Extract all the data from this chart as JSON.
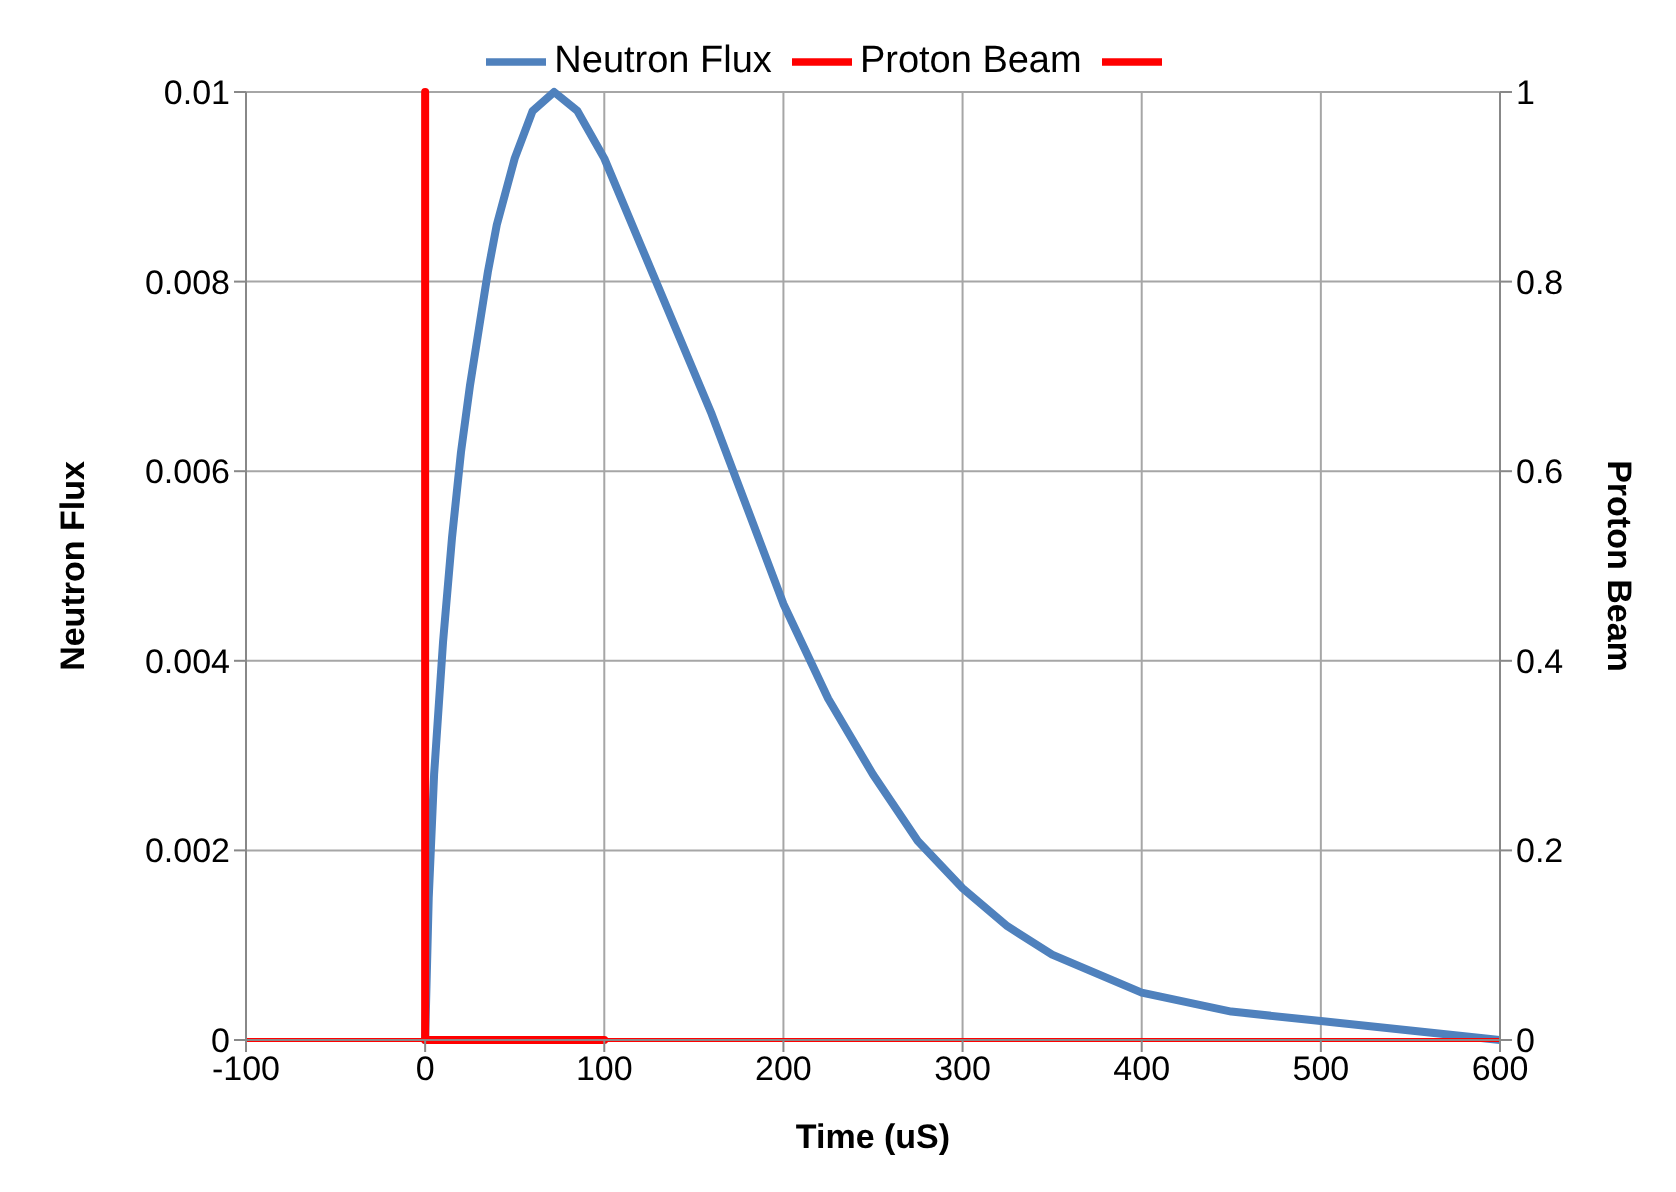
{
  "chart_data": {
    "type": "line",
    "xlabel": "Time (uS)",
    "ylabel": "Neutron Flux",
    "y2label": "Proton Beam",
    "xlim": [
      -100,
      600
    ],
    "xticks": [
      -100,
      0,
      100,
      200,
      300,
      400,
      500,
      600
    ],
    "ylim": [
      0,
      0.01
    ],
    "yticks": [
      0,
      0.002,
      0.004,
      0.006,
      0.008,
      0.01
    ],
    "y2lim": [
      0,
      1
    ],
    "y2ticks": [
      0,
      0.2,
      0.4,
      0.6,
      0.8,
      1
    ],
    "grid": true,
    "legend": "top",
    "marker": "none",
    "line_style": "solid",
    "series": [
      {
        "name": "Neutron Flux",
        "color": "#4f81bd",
        "x": [
          0,
          2,
          5,
          10,
          15,
          20,
          25,
          30,
          35,
          40,
          50,
          60,
          72,
          85,
          100,
          120,
          140,
          160,
          180,
          200,
          225,
          250,
          275,
          300,
          325,
          350,
          375,
          400,
          450,
          500,
          550,
          600
        ],
        "values": [
          0,
          0.0015,
          0.0028,
          0.0042,
          0.0053,
          0.0062,
          0.0069,
          0.0075,
          0.0081,
          0.0086,
          0.0093,
          0.0098,
          0.01,
          0.0098,
          0.0093,
          0.0084,
          0.0075,
          0.0066,
          0.0056,
          0.0046,
          0.0036,
          0.0028,
          0.0021,
          0.0016,
          0.0012,
          0.0009,
          0.0007,
          0.0005,
          0.0003,
          0.0002,
          0.0001,
          0
        ]
      },
      {
        "name": "Proton Beam",
        "color": "#ff0000",
        "axis": "y2",
        "x": [
          0,
          0,
          100
        ],
        "values": [
          1,
          0,
          0
        ]
      },
      {
        "color": "#ff0000",
        "axis": "y2",
        "x": [
          -100,
          600
        ],
        "values": [
          0,
          0
        ]
      }
    ]
  }
}
